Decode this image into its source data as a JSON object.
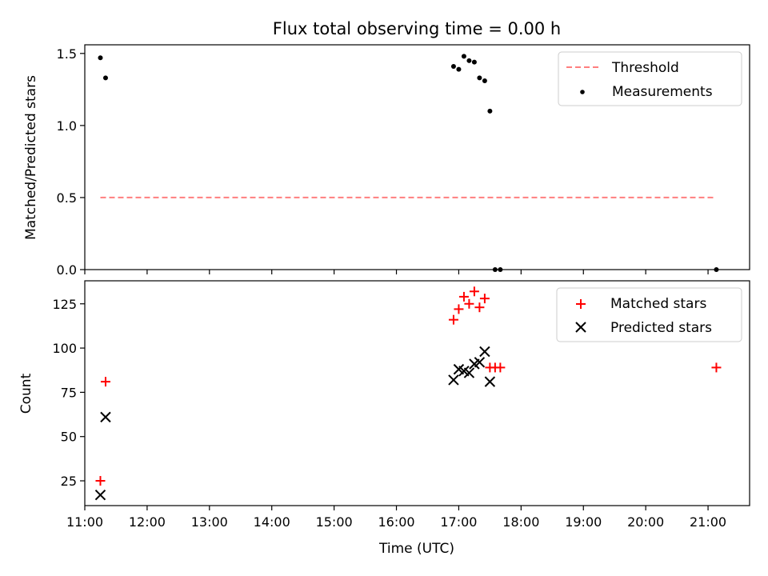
{
  "title": "Flux total observing time = 0.00 h",
  "chart_data": [
    {
      "type": "scatter",
      "ylabel": "Matched/Predicted stars",
      "xlim": [
        "11:00",
        "21:40"
      ],
      "ylim": [
        0,
        1.56
      ],
      "yticks": [
        "0.0",
        "0.5",
        "1.0",
        "1.5"
      ],
      "legend_position": "top-right",
      "series": [
        {
          "name": "Threshold",
          "kind": "dashed-line",
          "color": "#ff7f7f",
          "points": [
            [
              "11:15",
              0.5
            ],
            [
              "21:08",
              0.5
            ]
          ]
        },
        {
          "name": "Measurements",
          "kind": "dot",
          "color": "#000000",
          "points": [
            [
              "11:15",
              1.47
            ],
            [
              "11:20",
              1.33
            ],
            [
              "16:55",
              1.41
            ],
            [
              "17:00",
              1.39
            ],
            [
              "17:05",
              1.48
            ],
            [
              "17:10",
              1.45
            ],
            [
              "17:15",
              1.44
            ],
            [
              "17:20",
              1.33
            ],
            [
              "17:25",
              1.31
            ],
            [
              "17:30",
              1.1
            ],
            [
              "17:35",
              0.0
            ],
            [
              "17:40",
              0.0
            ],
            [
              "21:08",
              0.0
            ]
          ]
        }
      ]
    },
    {
      "type": "scatter",
      "xlabel": "Time (UTC)",
      "ylabel": "Count",
      "xlim": [
        "11:00",
        "21:40"
      ],
      "ylim": [
        11,
        138
      ],
      "yticks": [
        "25",
        "50",
        "75",
        "100",
        "125"
      ],
      "xticks": [
        "11:00",
        "12:00",
        "13:00",
        "14:00",
        "15:00",
        "16:00",
        "17:00",
        "18:00",
        "19:00",
        "20:00",
        "21:00"
      ],
      "legend_position": "top-right",
      "series": [
        {
          "name": "Matched stars",
          "kind": "plus",
          "color": "#ff0000",
          "points": [
            [
              "11:15",
              25
            ],
            [
              "11:20",
              81
            ],
            [
              "16:55",
              116
            ],
            [
              "17:00",
              122
            ],
            [
              "17:05",
              129
            ],
            [
              "17:10",
              125
            ],
            [
              "17:15",
              132
            ],
            [
              "17:20",
              123
            ],
            [
              "17:25",
              128
            ],
            [
              "17:30",
              89
            ],
            [
              "17:35",
              89
            ],
            [
              "17:40",
              89
            ],
            [
              "21:08",
              89
            ]
          ]
        },
        {
          "name": "Predicted stars",
          "kind": "x",
          "color": "#000000",
          "points": [
            [
              "11:15",
              17
            ],
            [
              "11:20",
              61
            ],
            [
              "16:55",
              82
            ],
            [
              "17:00",
              88
            ],
            [
              "17:05",
              87
            ],
            [
              "17:10",
              86
            ],
            [
              "17:15",
              91
            ],
            [
              "17:20",
              92
            ],
            [
              "17:25",
              98
            ],
            [
              "17:30",
              81
            ]
          ]
        }
      ]
    }
  ]
}
